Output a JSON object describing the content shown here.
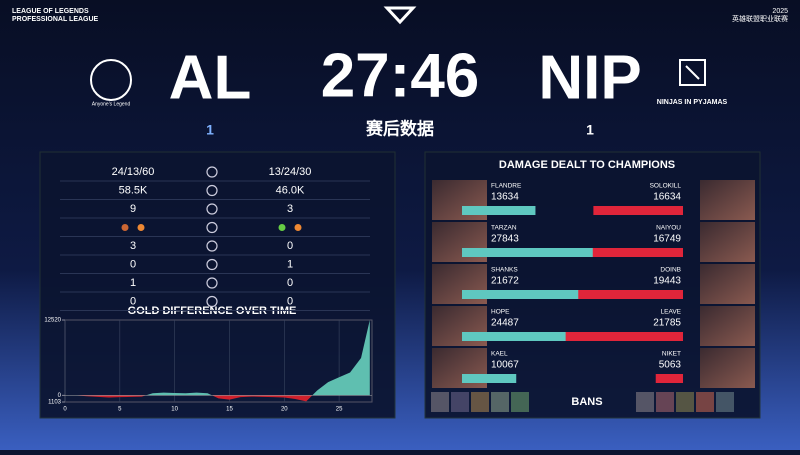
{
  "header": {
    "league_line1": "LEAGUE OF LEGENDS",
    "league_line2": "PROFESSIONAL LEAGUE",
    "year": "2025",
    "league_cn": "英雄联盟职业联赛",
    "time": "27:46",
    "subtitle": "赛后数据",
    "left_team": {
      "name": "AL",
      "logo_text": "Anyone's Legend",
      "score": "1"
    },
    "right_team": {
      "name": "NIP",
      "logo_text": "NINJAS IN PYJAMAS",
      "score": "1"
    }
  },
  "stats": {
    "rows": [
      [
        "24/13/60",
        "13/24/30"
      ],
      [
        "58.5K",
        "46.0K"
      ],
      [
        "9",
        "3"
      ],
      [
        null,
        null
      ],
      [
        "3",
        "0"
      ],
      [
        "0",
        "1"
      ],
      [
        "1",
        "0"
      ],
      [
        "0",
        "0"
      ]
    ]
  },
  "damage": {
    "title": "DAMAGE DEALT TO CHAMPIONS",
    "left": [
      {
        "name": "FLANDRE",
        "value": 13634
      },
      {
        "name": "TARZAN",
        "value": 27843
      },
      {
        "name": "SHANKS",
        "value": 21672
      },
      {
        "name": "HOPE",
        "value": 24487
      },
      {
        "name": "KAEL",
        "value": 10067
      }
    ],
    "right": [
      {
        "name": "SOLOKILL",
        "value": 16634
      },
      {
        "name": "NAIYOU",
        "value": 16749
      },
      {
        "name": "DOINB",
        "value": 19443
      },
      {
        "name": "LEAVE",
        "value": 21785
      },
      {
        "name": "NIKET",
        "value": 5063
      }
    ],
    "bans_label": "BANS"
  },
  "chart_data": {
    "type": "area",
    "title": "GOLD DIFFERENCE OVER TIME",
    "x": [
      0,
      1,
      2,
      3,
      4,
      5,
      6,
      7,
      8,
      9,
      10,
      11,
      12,
      13,
      14,
      15,
      16,
      17,
      18,
      19,
      20,
      21,
      22,
      23,
      24,
      25,
      26,
      27,
      27.8
    ],
    "values": [
      0,
      0,
      -150,
      -250,
      -350,
      -300,
      -250,
      -200,
      350,
      450,
      400,
      350,
      450,
      350,
      -500,
      -700,
      -300,
      -200,
      -250,
      -300,
      -350,
      -600,
      -1000,
      800,
      2200,
      3000,
      3800,
      6200,
      12520
    ],
    "xlim": [
      0,
      28
    ],
    "ylim": [
      -1103,
      12520
    ],
    "xticks": [
      0,
      5,
      10,
      15,
      20,
      25
    ],
    "yticks": [
      12520,
      0,
      {
        "value": -1103,
        "label": "1103"
      }
    ],
    "positive_color": "#5fbfb0",
    "negative_color": "#d0202c",
    "grid": true
  }
}
